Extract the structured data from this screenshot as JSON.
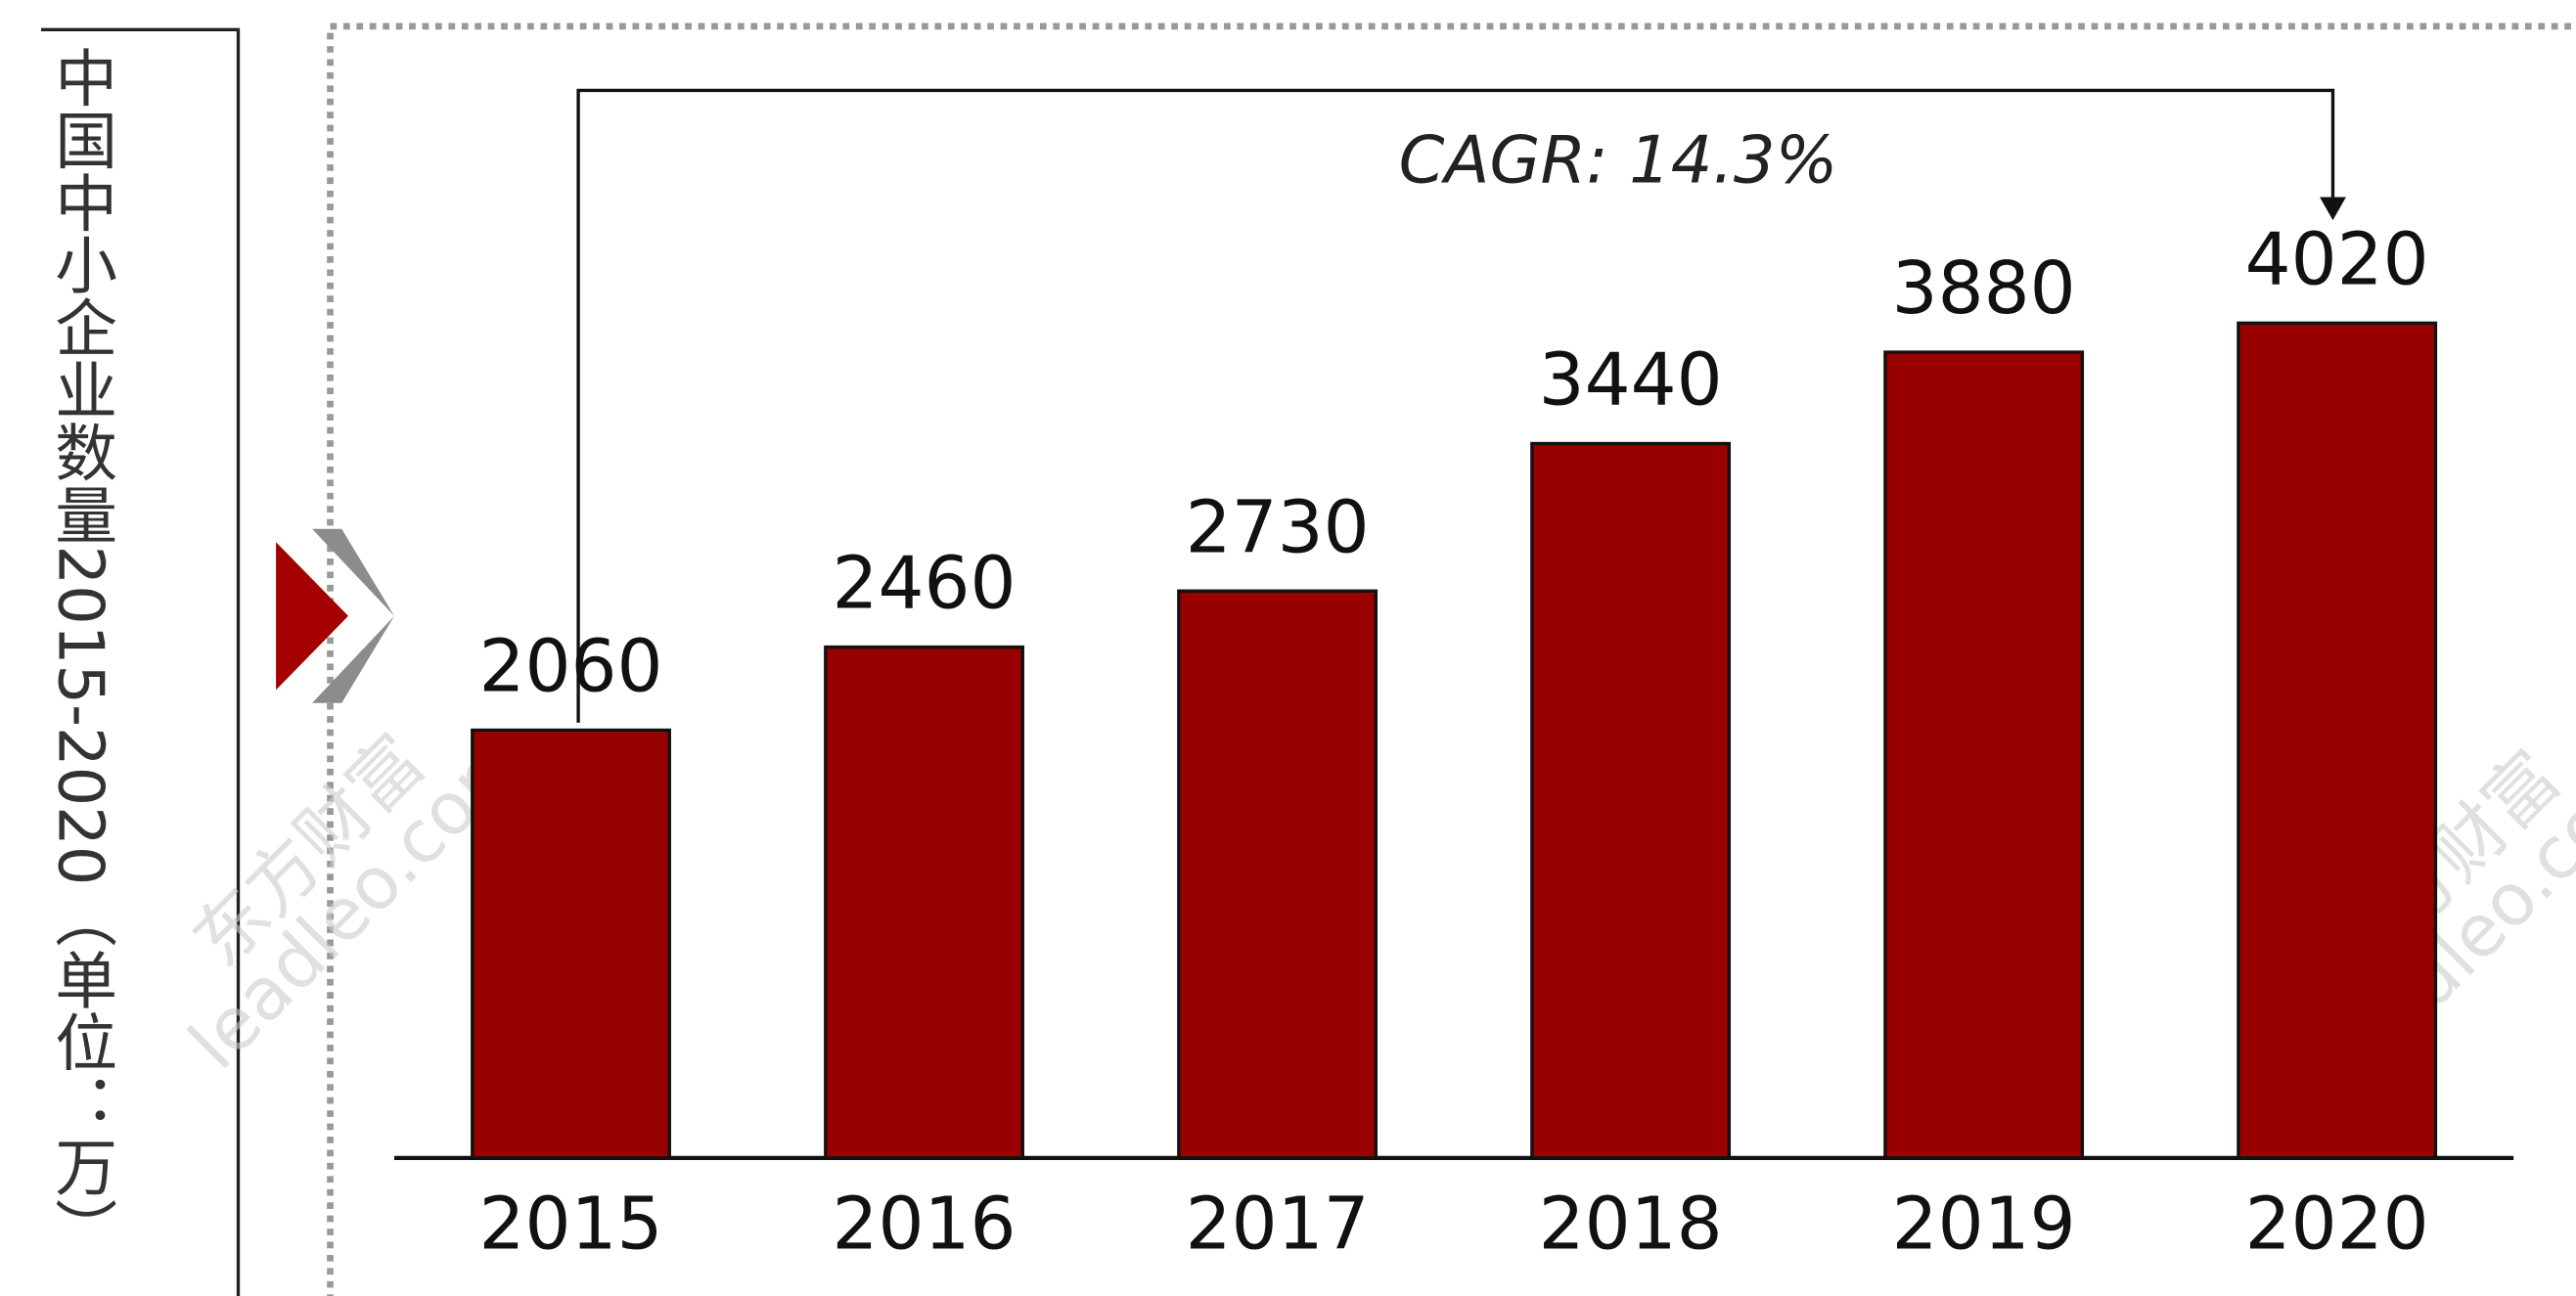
{
  "chart_data": {
    "type": "bar",
    "title": "中国中小企业数量2015-2020（单位：万）",
    "annotation": "CAGR: 14.3%",
    "watermark": [
      "东方财富",
      "leadleo.com"
    ],
    "categories": [
      "2015",
      "2016",
      "2017",
      "2018",
      "2019",
      "2020"
    ],
    "values": [
      2060,
      2460,
      2730,
      3440,
      3880,
      4020
    ],
    "color": "#990000",
    "ylim": [
      0,
      4500
    ]
  }
}
